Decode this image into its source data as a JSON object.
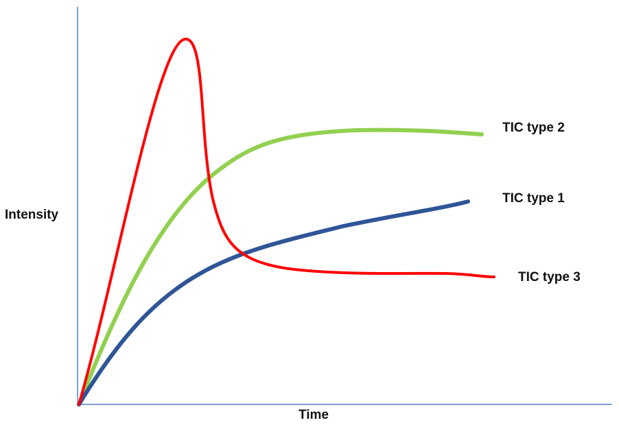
{
  "axes": {
    "y_label": "Intensity",
    "x_label": "Time"
  },
  "curves": [
    {
      "label": "TIC type 2"
    },
    {
      "label": "TIC type 1"
    },
    {
      "label": "TIC type 3"
    }
  ]
}
